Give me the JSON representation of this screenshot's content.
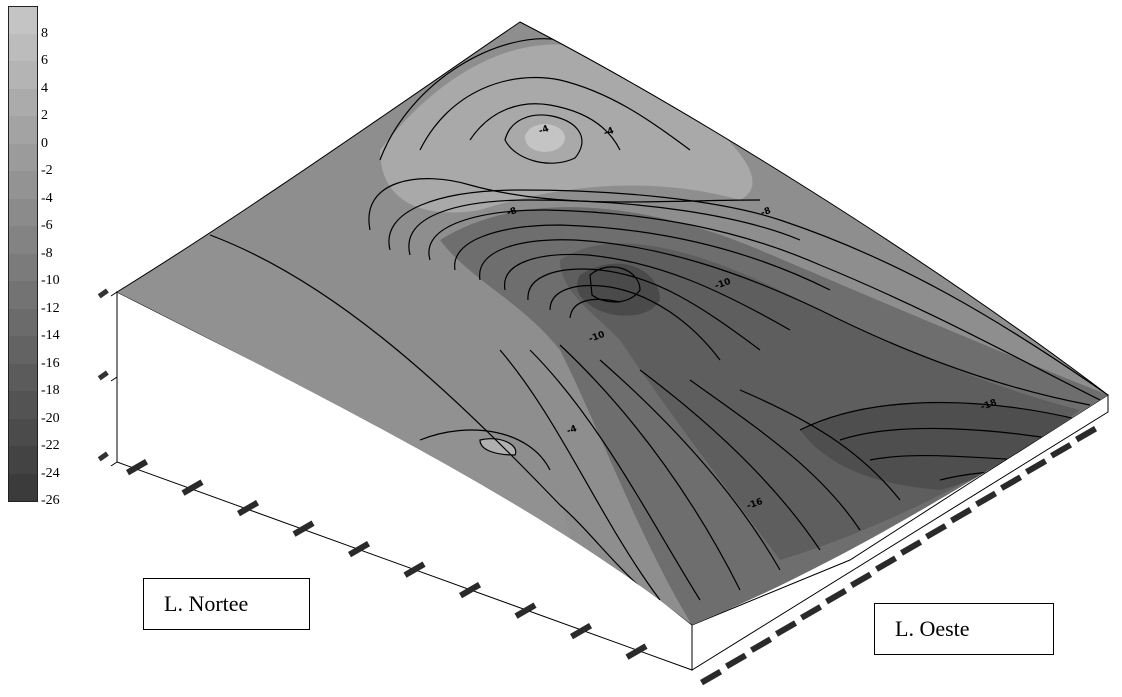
{
  "chart_data": {
    "type": "surface",
    "legend": {
      "placement": "top-left",
      "levels": [
        "8",
        "6",
        "4",
        "2",
        "0",
        "-2",
        "-4",
        "-6",
        "-8",
        "-10",
        "-12",
        "-14",
        "-16",
        "-18",
        "-20",
        "-22",
        "-24",
        "-26"
      ],
      "colors": [
        "#c4c4c4",
        "#bcbcbc",
        "#b4b4b4",
        "#ababab",
        "#a3a3a3",
        "#9b9b9b",
        "#939393",
        "#8b8b8b",
        "#838383",
        "#7b7b7b",
        "#737373",
        "#6b6b6b",
        "#636363",
        "#5b5b5b",
        "#535353",
        "#4b4b4b",
        "#434343",
        "#3b3b3b"
      ]
    },
    "contour_labels": [
      "-4",
      "-4",
      "-8",
      "-8",
      "-10",
      "-10",
      "-16",
      "-4",
      "-18"
    ],
    "axis_labels": {
      "north": "L. Nortee",
      "west": "L. Oeste"
    }
  }
}
